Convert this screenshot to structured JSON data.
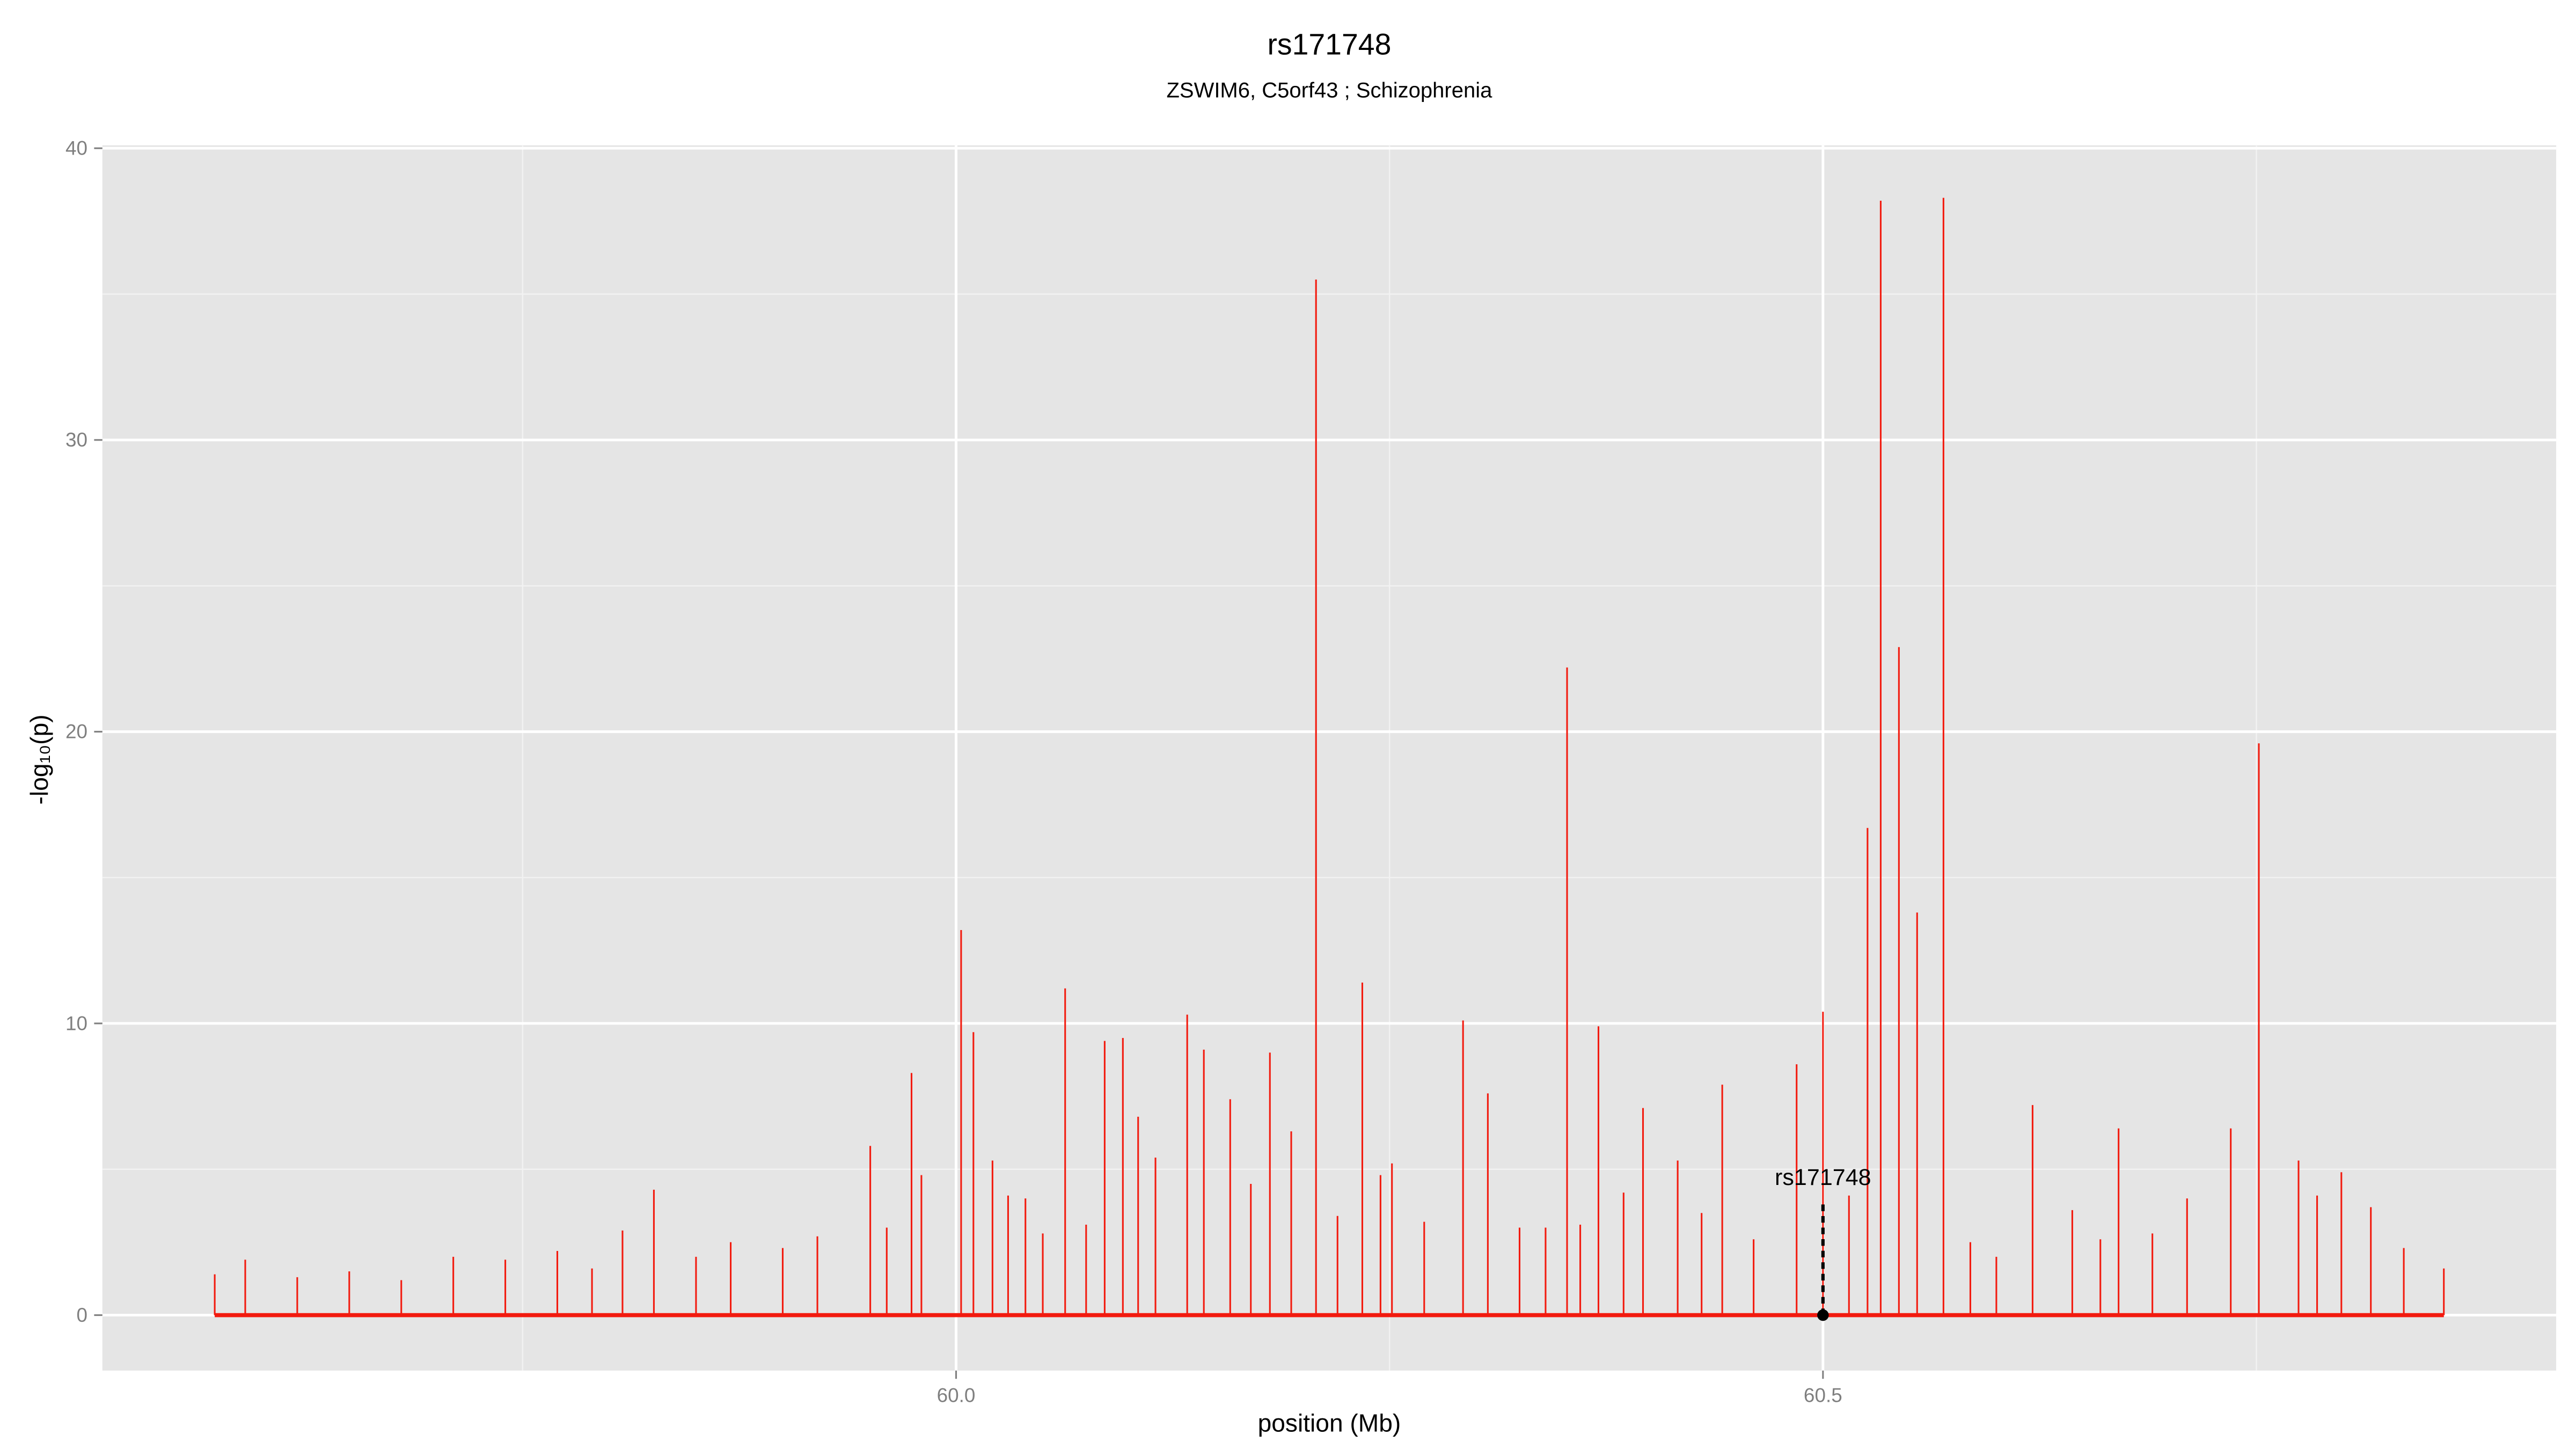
{
  "chart_data": {
    "type": "spike",
    "title": "rs171748",
    "subtitle": "ZSWIM6, C5orf43 ; Schizophrenia",
    "x_label": "position (Mb)",
    "y_label": "-log₁₀(p)",
    "color": "#f21b0f",
    "x": [
      59.5724,
      59.59,
      59.62,
      59.65,
      59.68,
      59.71,
      59.74,
      59.77,
      59.79,
      59.8076,
      59.8257,
      59.85,
      59.87,
      59.9,
      59.92,
      59.9505,
      59.96,
      59.9743,
      59.98,
      60.0029,
      60.01,
      60.021,
      60.03,
      60.04,
      60.05,
      60.0629,
      60.075,
      60.0857,
      60.0962,
      60.105,
      60.115,
      60.1333,
      60.1429,
      60.1581,
      60.17,
      60.181,
      60.1933,
      60.2076,
      60.22,
      60.2343,
      60.2448,
      60.2514,
      60.27,
      60.2924,
      60.3067,
      60.325,
      60.34,
      60.3524,
      60.36,
      60.3705,
      60.385,
      60.3962,
      60.4162,
      60.43,
      60.4419,
      60.46,
      60.4848,
      60.5,
      60.515,
      60.5257,
      60.5333,
      60.5438,
      60.5543,
      60.5695,
      60.585,
      60.6,
      60.6209,
      60.6438,
      60.66,
      60.6705,
      60.69,
      60.71,
      60.7352,
      60.7514,
      60.7743,
      60.785,
      60.799,
      60.816,
      60.835,
      60.8581
    ],
    "values": [
      1.4,
      1.9,
      1.3,
      1.5,
      1.2,
      2.0,
      1.9,
      2.2,
      1.6,
      2.9,
      4.3,
      2.0,
      2.5,
      2.3,
      2.7,
      5.8,
      3.0,
      8.3,
      4.8,
      13.2,
      9.7,
      5.3,
      4.1,
      4.0,
      2.8,
      11.2,
      3.1,
      9.4,
      9.5,
      6.8,
      5.4,
      10.3,
      9.1,
      7.4,
      4.5,
      9.0,
      6.3,
      35.5,
      3.4,
      11.4,
      4.8,
      5.2,
      3.2,
      10.1,
      7.6,
      3.0,
      3.0,
      22.2,
      3.1,
      9.9,
      4.2,
      7.1,
      5.3,
      3.5,
      7.9,
      2.6,
      8.6,
      10.4,
      4.1,
      16.7,
      38.2,
      22.9,
      13.8,
      38.3,
      2.5,
      2.0,
      7.2,
      3.6,
      2.6,
      6.4,
      2.8,
      4.0,
      6.4,
      19.6,
      5.3,
      4.1,
      4.9,
      3.7,
      2.3,
      1.6
    ],
    "highlight": {
      "label": "rs171748",
      "x": 60.5,
      "y": 0,
      "line_top": 3.9
    },
    "xlim": [
      59.5076,
      60.9229
    ],
    "ylim": [
      -1.9,
      40.1
    ],
    "xticks": [
      {
        "value": 60,
        "label": "60.0"
      },
      {
        "value": 60.5,
        "label": "60.5"
      }
    ],
    "x_minor_ticks": [
      59.75,
      60.25,
      60.75
    ],
    "yticks": [
      0,
      10,
      20,
      30,
      40
    ],
    "y_minor_ticks": [
      5,
      15,
      25,
      35
    ],
    "grid": true
  }
}
